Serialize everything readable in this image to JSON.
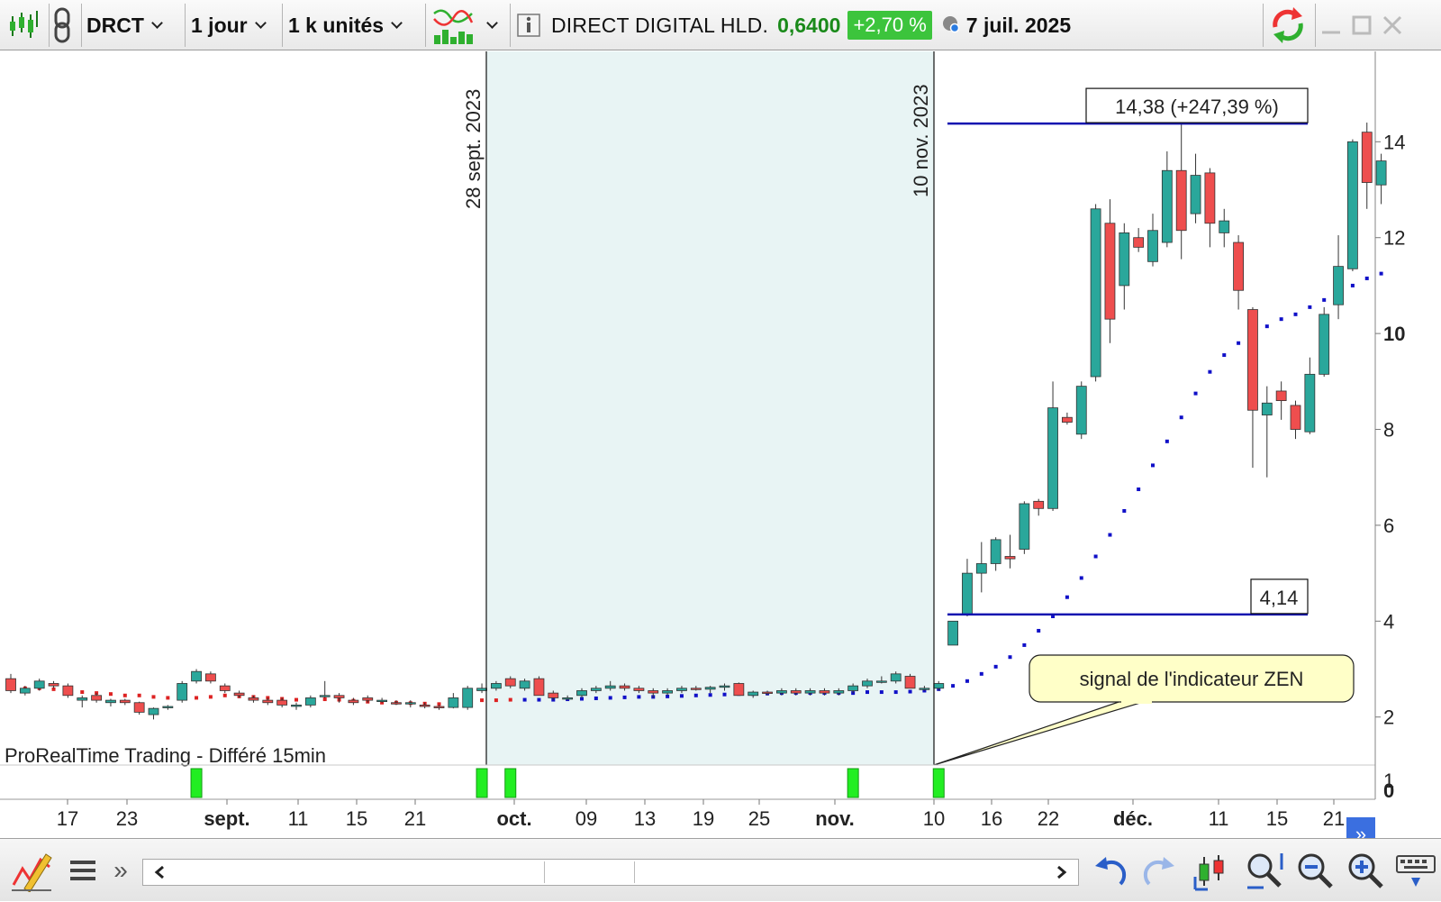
{
  "toolbar": {
    "symbol": "DRCT",
    "interval": "1 jour",
    "units": "1 k unités",
    "instrument_name": "DIRECT DIGITAL HLD.",
    "price": "0,6400",
    "change": "+2,70 %",
    "date": "7 juil. 2025"
  },
  "colors": {
    "up": "#2aa79b",
    "down": "#ee4e4e",
    "highlight": "#e8f4f4",
    "hline": "#1010b0",
    "signal": "#22ee22",
    "badge": "#3cc43c"
  },
  "chart_data": {
    "type": "candlestick",
    "footer": "ProRealTime Trading - Différé 15min",
    "y_ticks": [
      "14",
      "12",
      "10",
      "8",
      "6",
      "4",
      "2"
    ],
    "y_range": [
      0.8,
      15.5
    ],
    "x_labels": [
      {
        "text": "17",
        "bold": false
      },
      {
        "text": "23",
        "bold": false
      },
      {
        "text": "sept.",
        "bold": true
      },
      {
        "text": "11",
        "bold": false
      },
      {
        "text": "15",
        "bold": false
      },
      {
        "text": "21",
        "bold": false
      },
      {
        "text": "oct.",
        "bold": true
      },
      {
        "text": "09",
        "bold": false
      },
      {
        "text": "13",
        "bold": false
      },
      {
        "text": "19",
        "bold": false
      },
      {
        "text": "25",
        "bold": false
      },
      {
        "text": "nov.",
        "bold": true
      },
      {
        "text": "10",
        "bold": false
      },
      {
        "text": "16",
        "bold": false
      },
      {
        "text": "22",
        "bold": false
      },
      {
        "text": "déc.",
        "bold": true
      },
      {
        "text": "11",
        "bold": false
      },
      {
        "text": "15",
        "bold": false
      },
      {
        "text": "21",
        "bold": false
      }
    ],
    "vertical_markers": [
      "28 sept. 2023",
      "10 nov. 2023"
    ],
    "price_levels": [
      {
        "label": "14,38 (+247,39 %)",
        "value": 14.38
      },
      {
        "label": "4,14",
        "value": 4.14
      }
    ],
    "callout": "signal de l'indicateur ZEN",
    "indicator_ticks": [
      "1",
      "0"
    ],
    "candles": [
      [
        2.8,
        2.9,
        2.5,
        2.55
      ],
      [
        2.5,
        2.65,
        2.45,
        2.6
      ],
      [
        2.6,
        2.8,
        2.55,
        2.75
      ],
      [
        2.7,
        2.75,
        2.6,
        2.65
      ],
      [
        2.65,
        2.7,
        2.4,
        2.45
      ],
      [
        2.35,
        2.45,
        2.2,
        2.4
      ],
      [
        2.45,
        2.5,
        2.3,
        2.35
      ],
      [
        2.3,
        2.38,
        2.22,
        2.35
      ],
      [
        2.35,
        2.38,
        2.25,
        2.3
      ],
      [
        2.3,
        2.32,
        2.05,
        2.1
      ],
      [
        2.05,
        2.2,
        1.95,
        2.18
      ],
      [
        2.2,
        2.25,
        2.15,
        2.22
      ],
      [
        2.35,
        2.75,
        2.3,
        2.7
      ],
      [
        2.75,
        3.0,
        2.7,
        2.95
      ],
      [
        2.9,
        2.95,
        2.7,
        2.75
      ],
      [
        2.65,
        2.7,
        2.5,
        2.55
      ],
      [
        2.5,
        2.55,
        2.4,
        2.45
      ],
      [
        2.4,
        2.45,
        2.3,
        2.35
      ],
      [
        2.35,
        2.4,
        2.25,
        2.3
      ],
      [
        2.35,
        2.4,
        2.2,
        2.25
      ],
      [
        2.25,
        2.3,
        2.15,
        2.25
      ],
      [
        2.25,
        2.45,
        2.2,
        2.4
      ],
      [
        2.45,
        2.75,
        2.4,
        2.45
      ],
      [
        2.45,
        2.5,
        2.3,
        2.4
      ],
      [
        2.35,
        2.4,
        2.25,
        2.3
      ],
      [
        2.4,
        2.45,
        2.3,
        2.35
      ],
      [
        2.35,
        2.4,
        2.3,
        2.35
      ],
      [
        2.3,
        2.35,
        2.25,
        2.28
      ],
      [
        2.28,
        2.35,
        2.2,
        2.3
      ],
      [
        2.25,
        2.3,
        2.18,
        2.22
      ],
      [
        2.22,
        2.25,
        2.15,
        2.2
      ],
      [
        2.2,
        2.5,
        2.18,
        2.4
      ],
      [
        2.2,
        2.65,
        2.15,
        2.6
      ],
      [
        2.55,
        2.7,
        2.5,
        2.6
      ],
      [
        2.6,
        2.75,
        2.55,
        2.7
      ],
      [
        2.8,
        2.85,
        2.6,
        2.65
      ],
      [
        2.6,
        2.8,
        2.55,
        2.75
      ],
      [
        2.8,
        2.85,
        2.45,
        2.45
      ],
      [
        2.5,
        2.55,
        2.35,
        2.4
      ],
      [
        2.4,
        2.45,
        2.35,
        2.4
      ],
      [
        2.45,
        2.6,
        2.4,
        2.55
      ],
      [
        2.55,
        2.65,
        2.5,
        2.6
      ],
      [
        2.6,
        2.75,
        2.55,
        2.65
      ],
      [
        2.65,
        2.7,
        2.55,
        2.6
      ],
      [
        2.6,
        2.65,
        2.5,
        2.55
      ],
      [
        2.55,
        2.6,
        2.4,
        2.5
      ],
      [
        2.5,
        2.6,
        2.45,
        2.55
      ],
      [
        2.55,
        2.65,
        2.5,
        2.6
      ],
      [
        2.6,
        2.65,
        2.55,
        2.58
      ],
      [
        2.58,
        2.65,
        2.5,
        2.62
      ],
      [
        2.62,
        2.7,
        2.55,
        2.65
      ],
      [
        2.7,
        2.72,
        2.45,
        2.45
      ],
      [
        2.45,
        2.55,
        2.4,
        2.52
      ],
      [
        2.52,
        2.55,
        2.45,
        2.5
      ],
      [
        2.5,
        2.6,
        2.45,
        2.55
      ],
      [
        2.55,
        2.6,
        2.45,
        2.5
      ],
      [
        2.5,
        2.6,
        2.45,
        2.55
      ],
      [
        2.55,
        2.6,
        2.45,
        2.5
      ],
      [
        2.5,
        2.6,
        2.45,
        2.55
      ],
      [
        2.55,
        2.7,
        2.5,
        2.65
      ],
      [
        2.65,
        2.8,
        2.6,
        2.75
      ],
      [
        2.75,
        2.85,
        2.7,
        2.75
      ],
      [
        2.75,
        2.95,
        2.7,
        2.9
      ],
      [
        2.85,
        2.9,
        2.6,
        2.6
      ],
      [
        2.6,
        2.65,
        2.55,
        2.6
      ],
      [
        2.6,
        2.75,
        2.55,
        2.7
      ],
      [
        3.5,
        4.0,
        3.5,
        4.0
      ],
      [
        4.14,
        5.3,
        4.1,
        5.0
      ],
      [
        5.0,
        5.65,
        4.6,
        5.2
      ],
      [
        5.2,
        5.75,
        5.05,
        5.7
      ],
      [
        5.35,
        5.8,
        5.1,
        5.3
      ],
      [
        5.5,
        6.5,
        5.4,
        6.45
      ],
      [
        6.5,
        6.55,
        6.2,
        6.35
      ],
      [
        6.35,
        9.0,
        6.3,
        8.45
      ],
      [
        8.25,
        8.35,
        8.1,
        8.15
      ],
      [
        7.9,
        9.0,
        7.8,
        8.9
      ],
      [
        9.1,
        12.7,
        9.0,
        12.6
      ],
      [
        12.3,
        12.8,
        9.8,
        10.3
      ],
      [
        11.0,
        12.3,
        10.5,
        12.1
      ],
      [
        12.0,
        12.2,
        11.7,
        11.8
      ],
      [
        11.5,
        12.5,
        11.4,
        12.15
      ],
      [
        11.9,
        13.8,
        11.8,
        13.4
      ],
      [
        13.4,
        14.38,
        11.55,
        12.15
      ],
      [
        12.5,
        13.75,
        12.3,
        13.3
      ],
      [
        13.35,
        13.45,
        11.8,
        12.3
      ],
      [
        12.1,
        12.6,
        11.8,
        12.35
      ],
      [
        11.9,
        12.05,
        10.5,
        10.9
      ],
      [
        10.5,
        10.55,
        7.2,
        8.4
      ],
      [
        8.3,
        8.9,
        7.0,
        8.55
      ],
      [
        8.8,
        9.0,
        8.2,
        8.6
      ],
      [
        8.5,
        8.6,
        7.8,
        8.0
      ],
      [
        7.95,
        9.5,
        7.9,
        9.15
      ],
      [
        9.15,
        10.55,
        9.1,
        10.4
      ],
      [
        10.6,
        12.05,
        10.3,
        11.4
      ],
      [
        11.35,
        14.05,
        11.3,
        14.0
      ],
      [
        14.2,
        14.4,
        12.6,
        13.15
      ],
      [
        13.1,
        13.75,
        12.7,
        13.6
      ]
    ],
    "zen_dots": [
      [
        2.65,
        "d"
      ],
      [
        2.6,
        "d"
      ],
      [
        2.6,
        "d"
      ],
      [
        2.58,
        "d"
      ],
      [
        2.55,
        "d"
      ],
      [
        2.52,
        "d"
      ],
      [
        2.5,
        "d"
      ],
      [
        2.48,
        "d"
      ],
      [
        2.45,
        "d"
      ],
      [
        2.45,
        "d"
      ],
      [
        2.42,
        "d"
      ],
      [
        2.4,
        "d"
      ],
      [
        2.38,
        "d"
      ],
      [
        2.4,
        "d"
      ],
      [
        2.42,
        "d"
      ],
      [
        2.45,
        "d"
      ],
      [
        2.43,
        "d"
      ],
      [
        2.42,
        "d"
      ],
      [
        2.4,
        "d"
      ],
      [
        2.38,
        "d"
      ],
      [
        2.36,
        "d"
      ],
      [
        2.35,
        "d"
      ],
      [
        2.37,
        "d"
      ],
      [
        2.36,
        "d"
      ],
      [
        2.34,
        "d"
      ],
      [
        2.32,
        "d"
      ],
      [
        2.3,
        "d"
      ],
      [
        2.3,
        "d"
      ],
      [
        2.29,
        "d"
      ],
      [
        2.28,
        "d"
      ],
      [
        2.27,
        "d"
      ],
      [
        2.34,
        "u"
      ],
      [
        2.34,
        "u"
      ],
      [
        2.35,
        "d"
      ],
      [
        2.35,
        "d"
      ],
      [
        2.36,
        "d"
      ],
      [
        2.36,
        "u"
      ],
      [
        2.36,
        "u"
      ],
      [
        2.36,
        "u"
      ],
      [
        2.37,
        "u"
      ],
      [
        2.38,
        "u"
      ],
      [
        2.39,
        "u"
      ],
      [
        2.4,
        "u"
      ],
      [
        2.41,
        "u"
      ],
      [
        2.42,
        "u"
      ],
      [
        2.42,
        "u"
      ],
      [
        2.43,
        "u"
      ],
      [
        2.44,
        "u"
      ],
      [
        2.45,
        "u"
      ],
      [
        2.46,
        "u"
      ],
      [
        2.47,
        "u"
      ],
      [
        2.48,
        "u"
      ],
      [
        2.48,
        "u"
      ],
      [
        2.49,
        "u"
      ],
      [
        2.5,
        "u"
      ],
      [
        2.5,
        "u"
      ],
      [
        2.5,
        "u"
      ],
      [
        2.5,
        "u"
      ],
      [
        2.5,
        "u"
      ],
      [
        2.5,
        "u"
      ],
      [
        2.52,
        "u"
      ],
      [
        2.52,
        "u"
      ],
      [
        2.52,
        "u"
      ],
      [
        2.53,
        "u"
      ],
      [
        2.55,
        "u"
      ],
      [
        2.58,
        "u"
      ],
      [
        2.65,
        "u"
      ],
      [
        2.75,
        "u"
      ],
      [
        2.9,
        "u"
      ],
      [
        3.05,
        "u"
      ],
      [
        3.25,
        "u"
      ],
      [
        3.5,
        "u"
      ],
      [
        3.8,
        "u"
      ],
      [
        4.1,
        "u"
      ],
      [
        4.5,
        "u"
      ],
      [
        4.9,
        "u"
      ],
      [
        5.35,
        "u"
      ],
      [
        5.8,
        "u"
      ],
      [
        6.3,
        "u"
      ],
      [
        6.75,
        "u"
      ],
      [
        7.25,
        "u"
      ],
      [
        7.75,
        "u"
      ],
      [
        8.25,
        "u"
      ],
      [
        8.75,
        "u"
      ],
      [
        9.2,
        "u"
      ],
      [
        9.55,
        "u"
      ],
      [
        9.8,
        "u"
      ],
      [
        10.0,
        "u"
      ],
      [
        10.15,
        "u"
      ],
      [
        10.3,
        "u"
      ],
      [
        10.4,
        "u"
      ],
      [
        10.55,
        "u"
      ],
      [
        10.7,
        "u"
      ],
      [
        10.85,
        "u"
      ],
      [
        11.0,
        "u"
      ],
      [
        11.15,
        "u"
      ],
      [
        11.25,
        "u"
      ]
    ],
    "signal_bars": [
      13,
      33,
      35,
      59,
      65
    ]
  }
}
